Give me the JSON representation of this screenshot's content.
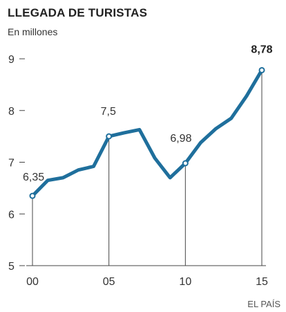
{
  "chart_data": {
    "type": "line",
    "title": "LLEGADA DE TURISTAS",
    "subtitle": "En millones",
    "source": "EL PAÍS",
    "xlabel": "",
    "ylabel": "",
    "xlim": [
      2000,
      2015
    ],
    "ylim": [
      5,
      9
    ],
    "y_ticks": [
      5,
      6,
      7,
      8,
      9
    ],
    "x_ticks": [
      2000,
      2005,
      2010,
      2015
    ],
    "x_tick_labels": [
      "00",
      "05",
      "10",
      "15"
    ],
    "grid": false,
    "line_color": "#1f6f9c",
    "series": [
      {
        "x": [
          2000,
          2001,
          2002,
          2003,
          2004,
          2005,
          2006,
          2007,
          2008,
          2009,
          2010,
          2011,
          2012,
          2013,
          2014,
          2015
        ],
        "values": [
          6.35,
          6.65,
          6.7,
          6.85,
          6.92,
          7.5,
          7.57,
          7.63,
          7.08,
          6.7,
          6.98,
          7.38,
          7.65,
          7.85,
          8.28,
          8.78
        ]
      }
    ],
    "annotations": [
      {
        "x": 2000,
        "y": 6.35,
        "label": "6,35",
        "bold": false
      },
      {
        "x": 2005,
        "y": 7.5,
        "label": "7,5",
        "bold": false
      },
      {
        "x": 2010,
        "y": 6.98,
        "label": "6,98",
        "bold": false
      },
      {
        "x": 2015,
        "y": 8.78,
        "label": "8,78",
        "bold": true
      }
    ]
  }
}
